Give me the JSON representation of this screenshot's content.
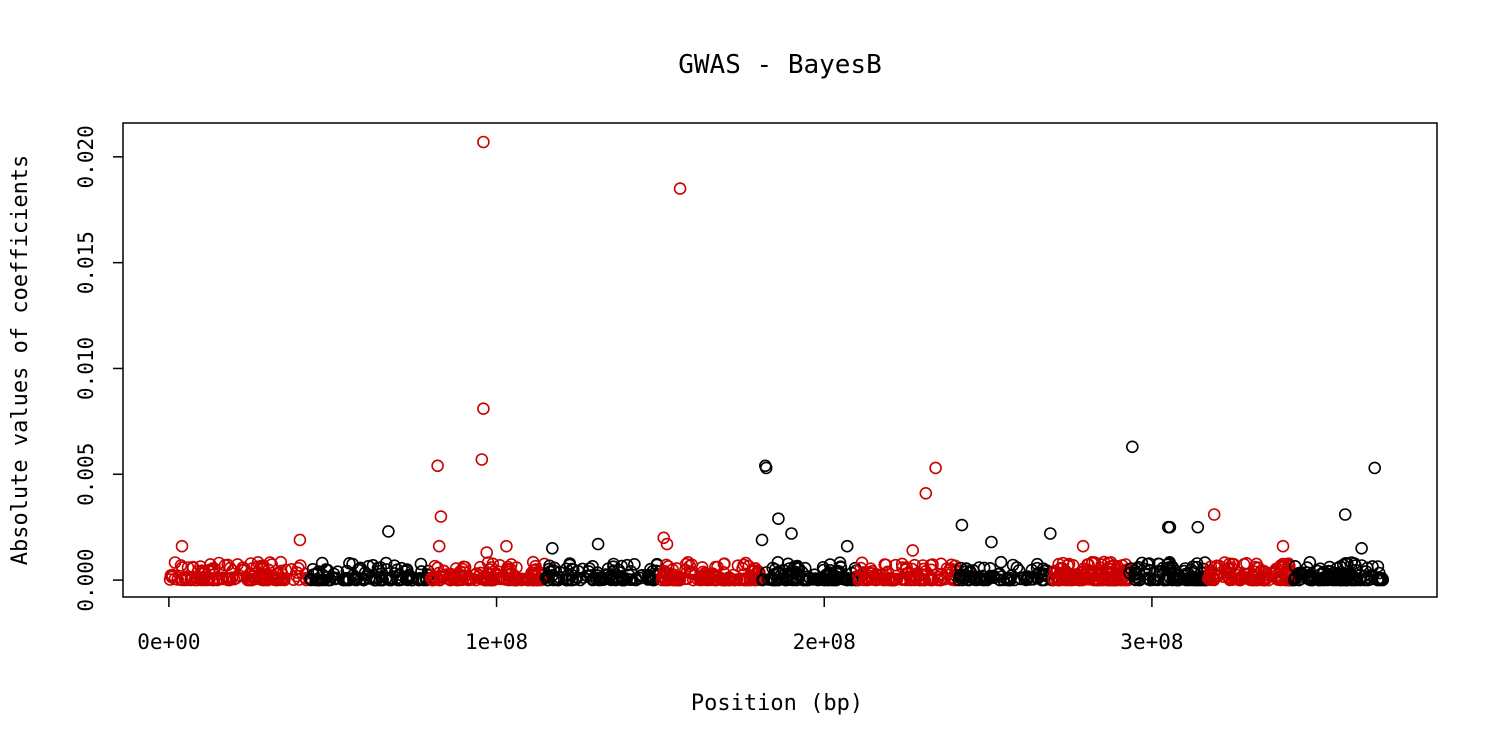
{
  "chart_data": {
    "type": "scatter",
    "title": "GWAS - BayesB",
    "xlabel": "Position (bp)",
    "ylabel": "Absolute values of coefficients",
    "xlim": [
      -14000000,
      387000000
    ],
    "ylim": [
      -0.0008,
      0.0216
    ],
    "x_ticks": [
      {
        "value": 0,
        "label": "0e+00"
      },
      {
        "value": 100000000,
        "label": "1e+08"
      },
      {
        "value": 200000000,
        "label": "2e+08"
      },
      {
        "value": 300000000,
        "label": "3e+08"
      }
    ],
    "y_ticks": [
      {
        "value": 0,
        "label": "0.000"
      },
      {
        "value": 0.005,
        "label": "0.005"
      },
      {
        "value": 0.01,
        "label": "0.010"
      },
      {
        "value": 0.015,
        "label": "0.015"
      },
      {
        "value": 0.02,
        "label": "0.020"
      }
    ],
    "colors": {
      "red": "#cc0000",
      "black": "#000000"
    },
    "segments": [
      {
        "start": 0,
        "end": 43000000,
        "color": "red",
        "count": 150
      },
      {
        "start": 43000000,
        "end": 80000000,
        "color": "black",
        "count": 120
      },
      {
        "start": 80000000,
        "end": 115000000,
        "color": "red",
        "count": 150
      },
      {
        "start": 115000000,
        "end": 150000000,
        "color": "black",
        "count": 120
      },
      {
        "start": 150000000,
        "end": 181000000,
        "color": "red",
        "count": 140
      },
      {
        "start": 181000000,
        "end": 210000000,
        "color": "black",
        "count": 120
      },
      {
        "start": 210000000,
        "end": 241000000,
        "color": "red",
        "count": 120
      },
      {
        "start": 241000000,
        "end": 270000000,
        "color": "black",
        "count": 90
      },
      {
        "start": 270000000,
        "end": 293000000,
        "color": "red",
        "count": 140
      },
      {
        "start": 293000000,
        "end": 317000000,
        "color": "black",
        "count": 110
      },
      {
        "start": 317000000,
        "end": 343000000,
        "color": "red",
        "count": 130
      },
      {
        "start": 343000000,
        "end": 371000000,
        "color": "black",
        "count": 120
      }
    ],
    "notable_points": [
      {
        "x": 96000000,
        "y": 0.0207,
        "color": "red"
      },
      {
        "x": 156000000,
        "y": 0.0185,
        "color": "red"
      },
      {
        "x": 96000000,
        "y": 0.0081,
        "color": "red"
      },
      {
        "x": 95500000,
        "y": 0.0057,
        "color": "red"
      },
      {
        "x": 82000000,
        "y": 0.0054,
        "color": "red"
      },
      {
        "x": 83000000,
        "y": 0.003,
        "color": "red"
      },
      {
        "x": 82500000,
        "y": 0.0016,
        "color": "red"
      },
      {
        "x": 4000000,
        "y": 0.0016,
        "color": "red"
      },
      {
        "x": 40000000,
        "y": 0.0019,
        "color": "red"
      },
      {
        "x": 103000000,
        "y": 0.0016,
        "color": "red"
      },
      {
        "x": 97000000,
        "y": 0.0013,
        "color": "red"
      },
      {
        "x": 151000000,
        "y": 0.002,
        "color": "red"
      },
      {
        "x": 152000000,
        "y": 0.0017,
        "color": "red"
      },
      {
        "x": 234000000,
        "y": 0.0053,
        "color": "red"
      },
      {
        "x": 231000000,
        "y": 0.0041,
        "color": "red"
      },
      {
        "x": 227000000,
        "y": 0.0014,
        "color": "red"
      },
      {
        "x": 279000000,
        "y": 0.0016,
        "color": "red"
      },
      {
        "x": 319000000,
        "y": 0.0031,
        "color": "red"
      },
      {
        "x": 340000000,
        "y": 0.0016,
        "color": "red"
      },
      {
        "x": 67000000,
        "y": 0.0023,
        "color": "black"
      },
      {
        "x": 117000000,
        "y": 0.0015,
        "color": "black"
      },
      {
        "x": 131000000,
        "y": 0.0017,
        "color": "black"
      },
      {
        "x": 182000000,
        "y": 0.0054,
        "color": "black"
      },
      {
        "x": 182300000,
        "y": 0.0053,
        "color": "black"
      },
      {
        "x": 181000000,
        "y": 0.0019,
        "color": "black"
      },
      {
        "x": 186000000,
        "y": 0.0029,
        "color": "black"
      },
      {
        "x": 190000000,
        "y": 0.0022,
        "color": "black"
      },
      {
        "x": 207000000,
        "y": 0.0016,
        "color": "black"
      },
      {
        "x": 242000000,
        "y": 0.0026,
        "color": "black"
      },
      {
        "x": 251000000,
        "y": 0.0018,
        "color": "black"
      },
      {
        "x": 269000000,
        "y": 0.0022,
        "color": "black"
      },
      {
        "x": 294000000,
        "y": 0.0063,
        "color": "black"
      },
      {
        "x": 305000000,
        "y": 0.0025,
        "color": "black"
      },
      {
        "x": 305500000,
        "y": 0.0025,
        "color": "black"
      },
      {
        "x": 314000000,
        "y": 0.0025,
        "color": "black"
      },
      {
        "x": 359000000,
        "y": 0.0031,
        "color": "black"
      },
      {
        "x": 368000000,
        "y": 0.0053,
        "color": "black"
      },
      {
        "x": 364000000,
        "y": 0.0015,
        "color": "black"
      }
    ]
  }
}
